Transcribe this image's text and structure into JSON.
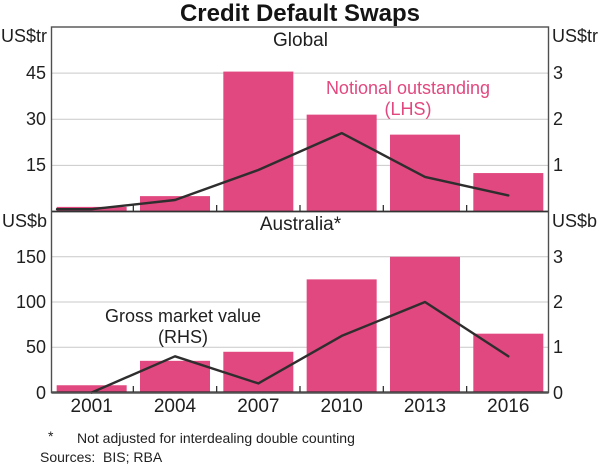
{
  "title": "Credit Default Swaps",
  "footnote": {
    "marker": "*",
    "text": "Not adjusted for interdealing double counting"
  },
  "sources": "Sources:  BIS; RBA",
  "colors": {
    "bar": "#e1487f",
    "line": "#2e2e2e",
    "grid": "#c9c9c9",
    "border": "#4f4f4f",
    "axis": "#222222",
    "pink_text": "#e1487f",
    "text": "#1f1f1f"
  },
  "chart_data": [
    {
      "type": "bar+line",
      "panel_title": "Global",
      "categories": [
        "2001",
        "2004",
        "2007",
        "2010",
        "2013",
        "2016"
      ],
      "lhs_axis": {
        "unit": "US$tr",
        "range": [
          0,
          60
        ],
        "ticks": [
          15,
          30,
          45
        ],
        "tick_labels": [
          "15",
          "30",
          "45"
        ]
      },
      "rhs_axis": {
        "unit": "US$tr",
        "range": [
          0,
          4
        ],
        "ticks": [
          1,
          2,
          3
        ],
        "tick_labels": [
          "1",
          "2",
          "3"
        ]
      },
      "series": [
        {
          "name": "Notional outstanding",
          "type": "bar",
          "axis": "LHS",
          "values": [
            1.5,
            5,
            45.5,
            31.5,
            25,
            12.5
          ]
        },
        {
          "name": "Gross market value",
          "type": "line",
          "axis": "RHS",
          "values": [
            0.05,
            0.25,
            0.9,
            1.7,
            0.75,
            0.35
          ]
        }
      ],
      "annotation": {
        "line1": "Notional outstanding",
        "line2": "(LHS)"
      },
      "grid": true,
      "legend_position": "in-plot annotation"
    },
    {
      "type": "bar+line",
      "panel_title": "Australia*",
      "categories": [
        "2001",
        "2004",
        "2007",
        "2010",
        "2013",
        "2016"
      ],
      "lhs_axis": {
        "unit": "US$b",
        "range": [
          0,
          200
        ],
        "ticks": [
          0,
          50,
          100,
          150
        ],
        "tick_labels": [
          "0",
          "50",
          "100",
          "150"
        ]
      },
      "rhs_axis": {
        "unit": "US$b",
        "range": [
          0,
          4
        ],
        "ticks": [
          0,
          1,
          2,
          3
        ],
        "tick_labels": [
          "0",
          "1",
          "2",
          "3"
        ]
      },
      "series": [
        {
          "name": "Notional outstanding",
          "type": "bar",
          "axis": "LHS",
          "values": [
            8,
            35,
            45,
            125,
            150,
            65
          ]
        },
        {
          "name": "Gross market value",
          "type": "line",
          "axis": "RHS",
          "values": [
            0,
            0.8,
            0.2,
            1.25,
            2.0,
            0.8
          ]
        }
      ],
      "annotation": {
        "line1": "Gross market value",
        "line2": "(RHS)"
      },
      "grid": true,
      "legend_position": "in-plot annotation"
    }
  ]
}
